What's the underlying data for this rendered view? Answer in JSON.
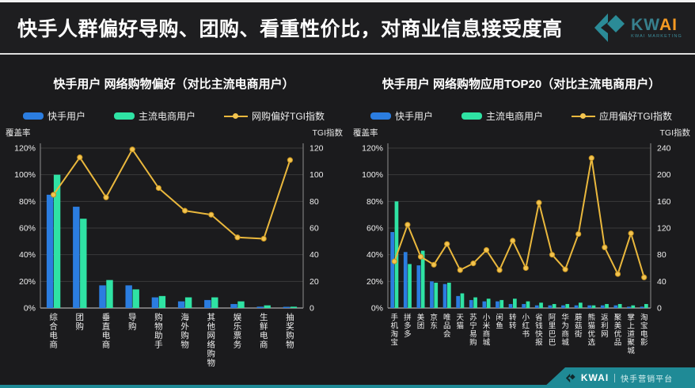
{
  "header": {
    "title": "快手人群偏好导购、团购、看重性价比，对商业信息接受度高",
    "logo": {
      "kw": "KW",
      "ai": "AI",
      "tagline": "KWAI MARKETING"
    }
  },
  "footer": {
    "brand": "KWAI",
    "label": "快手营销平台"
  },
  "colors": {
    "kuaishou_blue": "#2b7de0",
    "ecom_green": "#2fe3a4",
    "tgi_gold": "#eab83d",
    "tgi_marker": "#f3c44f",
    "accent_teal": "#1f8a96",
    "grid": "#3b3b3b",
    "axis_line": "#8f8f8f",
    "zero_line": "#cfcfcf",
    "tick_text": "#efefef"
  },
  "chart_data": [
    {
      "type": "bar",
      "title": "快手用户  网络购物偏好（对比主流电商用户）",
      "left_axis_label": "覆盖率",
      "right_axis_label": "TGI指数",
      "left_max": 120,
      "left_step": 20,
      "left_unit": "%",
      "right_max": 120,
      "right_step": 20,
      "grid": true,
      "legend_position": "top",
      "categories": [
        "综合电商",
        "团购",
        "垂直电商",
        "导购",
        "购物助手",
        "海外购物",
        "其他网络购物",
        "娱乐票务",
        "生鲜电商",
        "抽奖购物"
      ],
      "series": [
        {
          "name": "快手用户",
          "kind": "bar",
          "color": "kuaishou_blue",
          "axis": "left",
          "values": [
            85,
            76,
            17,
            17,
            8,
            5,
            6,
            3,
            1,
            0.5
          ]
        },
        {
          "name": "主流电商用户",
          "kind": "bar",
          "color": "ecom_green",
          "axis": "left",
          "values": [
            100,
            67,
            21,
            14,
            9,
            8,
            8,
            5,
            2,
            1
          ]
        },
        {
          "name": "网购偏好TGI指数",
          "kind": "line",
          "color": "tgi_gold",
          "axis": "right",
          "values": [
            85,
            113,
            83,
            119,
            90,
            73,
            70,
            53,
            52,
            111
          ]
        }
      ]
    },
    {
      "type": "bar",
      "title": "快手用户  网络购物应用TOP20（对比主流电商用户）",
      "left_axis_label": "覆盖率",
      "right_axis_label": "TGI指数",
      "left_max": 120,
      "left_step": 20,
      "left_unit": "%",
      "right_max": 240,
      "right_step": 40,
      "grid": true,
      "legend_position": "top",
      "categories": [
        "手机淘宝",
        "拼多多",
        "美团",
        "京东",
        "唯品会",
        "天猫",
        "苏宁易购",
        "小米商城",
        "闲鱼",
        "转转",
        "小红书",
        "省钱快报",
        "阿里巴巴",
        "华为商城",
        "蘑菇街",
        "熊猫优选",
        "返利网",
        "聚美优品",
        "掌上道聚城",
        "淘宝电影"
      ],
      "series": [
        {
          "name": "快手用户",
          "kind": "bar",
          "color": "kuaishou_blue",
          "axis": "left",
          "values": [
            57,
            42,
            32,
            20,
            18,
            9,
            6,
            5,
            5,
            3,
            3,
            2,
            2,
            2,
            2,
            2,
            2,
            2,
            1,
            1
          ]
        },
        {
          "name": "主流电商用户",
          "kind": "bar",
          "color": "ecom_green",
          "axis": "left",
          "values": [
            80,
            33,
            43,
            19,
            19,
            11,
            8,
            7,
            6,
            7,
            5,
            4,
            3,
            3,
            4,
            2,
            3,
            3,
            2,
            3
          ]
        },
        {
          "name": "应用偏好TGI指数",
          "kind": "line",
          "color": "tgi_gold",
          "axis": "right",
          "values": [
            70,
            125,
            77,
            65,
            96,
            57,
            67,
            87,
            57,
            101,
            60,
            158,
            80,
            58,
            111,
            225,
            91,
            51,
            112,
            46
          ]
        }
      ]
    }
  ]
}
